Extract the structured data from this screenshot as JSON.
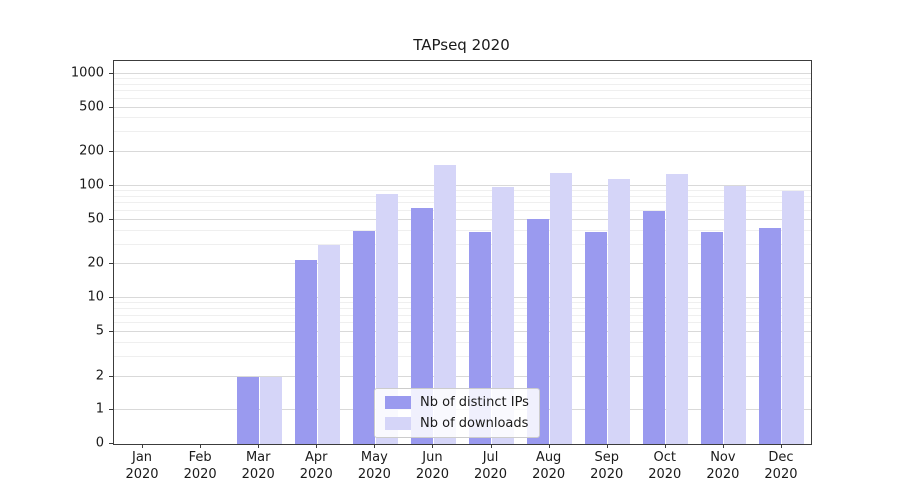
{
  "chart_data": {
    "type": "bar",
    "title": "TAPseq 2020",
    "yscale": "symlog",
    "grid": true,
    "categories": [
      "Jan 2020",
      "Feb 2020",
      "Mar 2020",
      "Apr 2020",
      "May 2020",
      "Jun 2020",
      "Jul 2020",
      "Aug 2020",
      "Sep 2020",
      "Oct 2020",
      "Nov 2020",
      "Dec 2020"
    ],
    "series": [
      {
        "name": "Nb of distinct IPs",
        "color": "#9a9aef",
        "values": [
          0,
          0,
          2,
          22,
          40,
          63,
          39,
          51,
          39,
          60,
          39,
          42
        ]
      },
      {
        "name": "Nb of downloads",
        "color": "#d5d5f8",
        "values": [
          0,
          0,
          2,
          30,
          85,
          155,
          97,
          130,
          115,
          128,
          100,
          90
        ]
      }
    ],
    "y_ticks": [
      0,
      1,
      2,
      5,
      10,
      20,
      50,
      100,
      200,
      500,
      1000
    ],
    "y_minor_ticks": [
      3,
      4,
      6,
      7,
      8,
      9,
      30,
      40,
      60,
      70,
      80,
      90,
      300,
      400,
      600,
      700,
      800,
      900
    ],
    "ylim": [
      0,
      1300
    ],
    "legend_position": "lower center"
  }
}
